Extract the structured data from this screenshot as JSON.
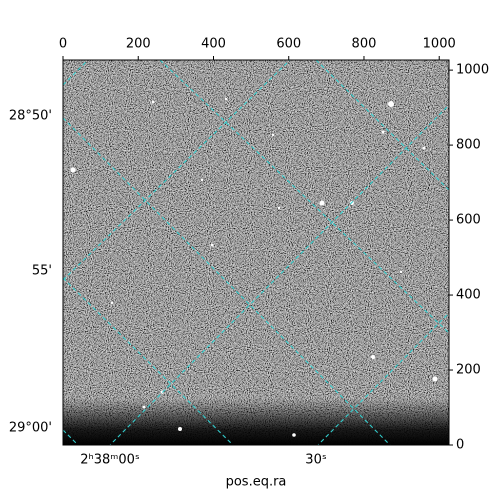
{
  "chart_data": {
    "type": "image",
    "xlabel": "pos.eq.ra",
    "xlim": [
      0,
      1026
    ],
    "xticks": [
      0,
      200,
      400,
      600,
      800,
      1000
    ],
    "ylim": [
      0,
      1027
    ],
    "yticks": [
      0,
      200,
      400,
      600,
      800,
      1000
    ],
    "dec_labels": [
      "28°50'",
      "55'",
      "29°00'"
    ],
    "ra_labels": [
      "2ʰ38ᵐ00ˢ",
      "30ˢ"
    ],
    "grid_color": "#33cccc"
  }
}
